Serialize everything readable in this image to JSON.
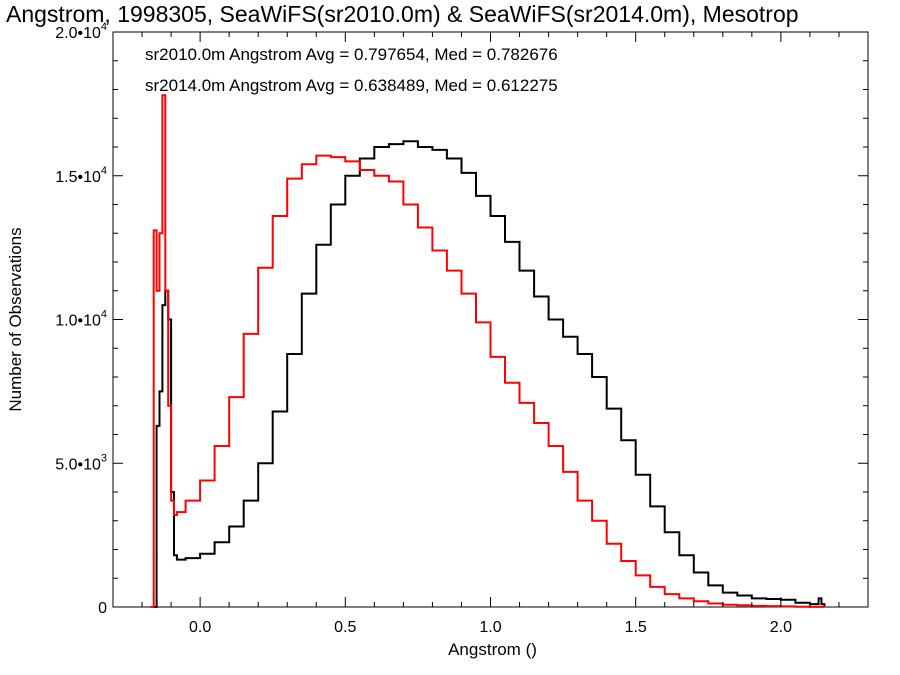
{
  "chart_data": {
    "type": "line",
    "title": "Angstrom, 1998305, SeaWiFS(sr2010.0m) & SeaWiFS(sr2014.0m), Mesotrop",
    "xlabel": "Angstrom ()",
    "ylabel": "Number of Observations",
    "xlim": [
      -0.3,
      2.3
    ],
    "ylim": [
      0,
      20000
    ],
    "x_ticks": [
      0.0,
      0.5,
      1.0,
      1.5,
      2.0
    ],
    "x_tick_labels": [
      "0.0",
      "0.5",
      "1.0",
      "1.5",
      "2.0"
    ],
    "y_ticks": [
      0,
      5000,
      10000,
      15000,
      20000
    ],
    "y_tick_labels": [
      {
        "mantissa": "0",
        "exp": ""
      },
      {
        "mantissa": "5.0•10",
        "exp": "3"
      },
      {
        "mantissa": "1.0•10",
        "exp": "4"
      },
      {
        "mantissa": "1.5•10",
        "exp": "4"
      },
      {
        "mantissa": "2.0•10",
        "exp": "4"
      }
    ],
    "grid": false,
    "annotations": [
      {
        "text": "sr2010.0m Angstrom Avg = 0.797654, Med = 0.782676",
        "color": "#000000"
      },
      {
        "text": "sr2014.0m Angstrom Avg = 0.638489, Med = 0.612275",
        "color": "#ff0000"
      }
    ],
    "series": [
      {
        "color": "#000000",
        "x": [
          -0.17,
          -0.16,
          -0.15,
          -0.14,
          -0.13,
          -0.12,
          -0.11,
          -0.1,
          -0.09,
          -0.08,
          -0.05,
          0.0,
          0.05,
          0.1,
          0.15,
          0.2,
          0.25,
          0.3,
          0.35,
          0.4,
          0.45,
          0.5,
          0.55,
          0.6,
          0.65,
          0.7,
          0.75,
          0.8,
          0.85,
          0.9,
          0.95,
          1.0,
          1.05,
          1.1,
          1.15,
          1.2,
          1.25,
          1.3,
          1.35,
          1.4,
          1.45,
          1.5,
          1.55,
          1.6,
          1.65,
          1.7,
          1.75,
          1.8,
          1.85,
          1.9,
          1.95,
          2.0,
          2.05,
          2.1,
          2.13,
          2.14,
          2.15
        ],
        "y": [
          0,
          0,
          6300,
          7500,
          10500,
          11000,
          10000,
          4000,
          1800,
          1650,
          1700,
          1850,
          2250,
          2800,
          3700,
          5000,
          6800,
          8800,
          10900,
          12600,
          14000,
          15000,
          15600,
          16000,
          16100,
          16200,
          16000,
          15900,
          15600,
          15100,
          14300,
          13600,
          12700,
          11700,
          10800,
          10000,
          9400,
          8800,
          8000,
          6900,
          5800,
          4600,
          3500,
          2600,
          1800,
          1200,
          750,
          500,
          400,
          300,
          280,
          250,
          150,
          100,
          300,
          100,
          0
        ]
      },
      {
        "color": "#ff0000",
        "x": [
          -0.17,
          -0.16,
          -0.15,
          -0.14,
          -0.13,
          -0.12,
          -0.11,
          -0.1,
          -0.09,
          -0.08,
          -0.05,
          0.0,
          0.05,
          0.1,
          0.15,
          0.2,
          0.25,
          0.3,
          0.35,
          0.4,
          0.45,
          0.5,
          0.55,
          0.6,
          0.65,
          0.7,
          0.75,
          0.8,
          0.85,
          0.9,
          0.95,
          1.0,
          1.05,
          1.1,
          1.15,
          1.2,
          1.25,
          1.3,
          1.35,
          1.4,
          1.45,
          1.5,
          1.55,
          1.6,
          1.65,
          1.7,
          1.75,
          1.8,
          1.85,
          1.9,
          1.95,
          2.0,
          2.05,
          2.1,
          2.15
        ],
        "y": [
          0,
          13100,
          11000,
          13000,
          17800,
          11000,
          7000,
          3700,
          3200,
          3300,
          3700,
          4400,
          5600,
          7300,
          9500,
          11800,
          13600,
          14900,
          15400,
          15700,
          15650,
          15500,
          15200,
          15000,
          14800,
          14000,
          13200,
          12400,
          11700,
          10900,
          9900,
          8700,
          7800,
          7100,
          6400,
          5600,
          4700,
          3700,
          3000,
          2200,
          1600,
          1100,
          700,
          450,
          300,
          200,
          120,
          80,
          60,
          40,
          30,
          20,
          10,
          5,
          0
        ]
      }
    ]
  }
}
